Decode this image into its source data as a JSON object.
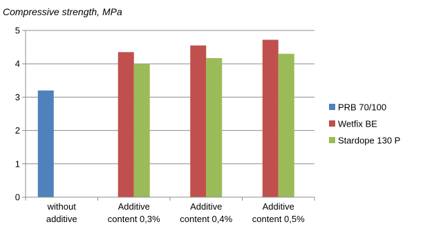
{
  "chart_data": {
    "type": "bar",
    "title": "Compressive strength, MPa",
    "xlabel": "",
    "ylabel": "",
    "ylim": [
      0,
      5
    ],
    "yticks": [
      "0",
      "1",
      "2",
      "3",
      "4",
      "5"
    ],
    "grid": true,
    "legend_position": "right",
    "categories": [
      [
        "without",
        "additive"
      ],
      [
        "Additive",
        "content 0,3%"
      ],
      [
        "Additive",
        "content 0,4%"
      ],
      [
        "Additive",
        "content 0,5%"
      ]
    ],
    "series": [
      {
        "name": "PRB 70/100",
        "color": "#4f81bd",
        "values": [
          3.2,
          null,
          null,
          null
        ]
      },
      {
        "name": "Wetfix BE",
        "color": "#c0504d",
        "values": [
          null,
          4.35,
          4.55,
          4.72
        ]
      },
      {
        "name": "Stardope 130 P",
        "color": "#9bbb59",
        "values": [
          null,
          4.0,
          4.17,
          4.3
        ]
      }
    ]
  }
}
